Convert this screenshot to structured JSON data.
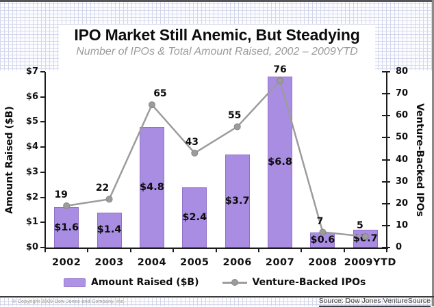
{
  "slide": {
    "footer_left": "© Copyright 2009 Dow Jones and Company, Inc.",
    "footer_right": "Source: Dow Jones VentureSource"
  },
  "colors": {
    "bar": "#a98de2",
    "line": "#9c9c9c",
    "axis": "#1c1c1c",
    "subtitle_text": "#9b9b9b",
    "grid_paper": "#d3d7ec"
  },
  "chart_data": {
    "type": "combo",
    "title": "IPO Market Still Anemic, But Steadying",
    "subtitle": "Number of IPOs & Total Amount Raised, 2002 – 2009YTD",
    "categories": [
      "2002",
      "2003",
      "2004",
      "2005",
      "2006",
      "2007",
      "2008",
      "2009YTD"
    ],
    "series": [
      {
        "name": "Amount Raised ($B)",
        "chart": "bar",
        "axis": "left",
        "color": "#a98de2",
        "values": [
          1.6,
          1.4,
          4.8,
          2.4,
          3.7,
          6.8,
          0.6,
          0.7
        ],
        "value_labels": [
          "$1.6",
          "$1.4",
          "$4.8",
          "$2.4",
          "$3.7",
          "$6.8",
          "$0.6",
          "$0.7"
        ]
      },
      {
        "name": "Venture-Backed IPOs",
        "chart": "line",
        "axis": "right",
        "color": "#9c9c9c",
        "values": [
          19,
          22,
          65,
          43,
          55,
          76,
          7,
          5
        ],
        "value_labels": [
          "19",
          "22",
          "65",
          "43",
          "55",
          "76",
          "7",
          "5"
        ]
      }
    ],
    "left_axis": {
      "title": "Amount Raised ($B)",
      "min": 0,
      "max": 7,
      "step": 1,
      "tick_labels": [
        "$0",
        "$1",
        "$2",
        "$3",
        "$4",
        "$5",
        "$6",
        "$7"
      ]
    },
    "right_axis": {
      "title": "Venture-Backed IPOs",
      "min": 0,
      "max": 80,
      "step": 10,
      "tick_labels": [
        "0",
        "10",
        "20",
        "30",
        "40",
        "50",
        "60",
        "70",
        "80"
      ]
    },
    "legend": {
      "position": "bottom",
      "entries": [
        "Amount Raised ($B)",
        "Venture-Backed IPOs"
      ]
    },
    "grid": false
  }
}
